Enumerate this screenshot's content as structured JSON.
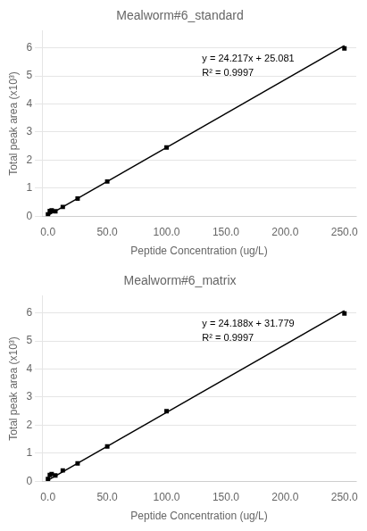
{
  "chart_data": [
    {
      "type": "scatter",
      "title": "Mealworm#6_standard",
      "x_label": "Peptide Concentration (ug/L)",
      "y_label": "Total peak area (x10³)",
      "xlim": [
        -5,
        260
      ],
      "ylim": [
        0,
        6.6
      ],
      "xticks": [
        {
          "value": 0,
          "label": "0.0"
        },
        {
          "value": 50,
          "label": "50.0"
        },
        {
          "value": 100,
          "label": "100.0"
        },
        {
          "value": 150,
          "label": "150.0"
        },
        {
          "value": 200,
          "label": "200.0"
        },
        {
          "value": 250,
          "label": "250.0"
        }
      ],
      "yticks": [
        0,
        1,
        2,
        3,
        4,
        5,
        6
      ],
      "grid": "y",
      "legend": false,
      "series": [
        {
          "type": "scatter",
          "marker": "square",
          "color": "#000000",
          "x": [
            0.0,
            1.56,
            3.125,
            6.25,
            12.5,
            25.0,
            50.0,
            100.0,
            250.0
          ],
          "values": [
            0.064,
            0.183,
            0.207,
            0.176,
            0.328,
            0.63,
            1.236,
            2.447,
            5.979
          ]
        },
        {
          "type": "line",
          "line_style": "solid",
          "color": "#000000",
          "x": [
            0,
            250
          ],
          "values": [
            0.025081,
            6.079331
          ]
        }
      ],
      "annotations": [
        {
          "text": "y = 24.217x + 25.081",
          "x": 130,
          "y": 5.6
        },
        {
          "text": "R² = 0.9997",
          "x": 130,
          "y": 5.1
        }
      ]
    },
    {
      "type": "scatter",
      "title": "Mealworm#6_matrix",
      "x_label": "Peptide Concentration (ug/L)",
      "y_label": "Total peak area (x10³)",
      "xlim": [
        -5,
        260
      ],
      "ylim": [
        0,
        6.6
      ],
      "xticks": [
        {
          "value": 0,
          "label": "0.0"
        },
        {
          "value": 50,
          "label": "50.0"
        },
        {
          "value": 100,
          "label": "100.0"
        },
        {
          "value": 150,
          "label": "150.0"
        },
        {
          "value": 200,
          "label": "200.0"
        },
        {
          "value": 250,
          "label": "250.0"
        }
      ],
      "yticks": [
        0,
        1,
        2,
        3,
        4,
        5,
        6
      ],
      "grid": "y",
      "legend": false,
      "series": [
        {
          "type": "scatter",
          "marker": "square",
          "color": "#000000",
          "x": [
            0.0,
            1.56,
            3.125,
            6.25,
            12.5,
            25.0,
            50.0,
            100.0,
            250.0
          ],
          "values": [
            0.082,
            0.219,
            0.257,
            0.208,
            0.384,
            0.636,
            1.242,
            2.499,
            5.979
          ]
        },
        {
          "type": "line",
          "line_style": "solid",
          "color": "#000000",
          "x": [
            0,
            250
          ],
          "values": [
            0.031779,
            6.078779
          ]
        }
      ],
      "annotations": [
        {
          "text": "y = 24.188x + 31.779",
          "x": 130,
          "y": 5.6
        },
        {
          "text": "R² = 0.9997",
          "x": 130,
          "y": 5.1
        }
      ]
    }
  ]
}
